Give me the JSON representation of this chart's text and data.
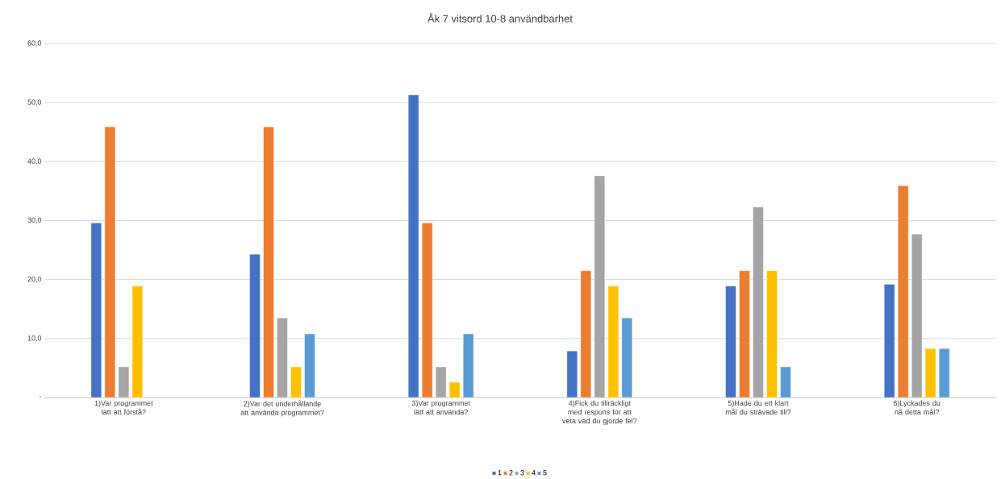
{
  "chart_data": {
    "type": "bar",
    "title": "Åk 7 vitsord 10-8 användbarhet",
    "categories": [
      "1)Var programmet lätt att förstå?",
      "2)Var det underhållande att använda programmet?",
      "3)Var programmet lätt att använda?",
      "4)Fick du tillräckligt med respons för att veta vad du gjorde fel?",
      "5)Hade du ett klart mål du strävade till?",
      "6)Lyckades du nå detta mål?"
    ],
    "series": [
      {
        "name": "1",
        "color": "#4472c4",
        "values": [
          29.6,
          24.3,
          51.3,
          7.9,
          18.9,
          19.2
        ]
      },
      {
        "name": "2",
        "color": "#ed7d31",
        "values": [
          45.9,
          45.9,
          29.6,
          21.5,
          21.5,
          35.9
        ]
      },
      {
        "name": "3",
        "color": "#a5a5a5",
        "values": [
          5.2,
          13.5,
          5.2,
          37.6,
          32.3,
          27.7
        ]
      },
      {
        "name": "4",
        "color": "#ffc000",
        "values": [
          18.9,
          5.2,
          2.6,
          18.9,
          21.5,
          8.3
        ]
      },
      {
        "name": "5",
        "color": "#5b9bd5",
        "values": [
          null,
          10.8,
          10.8,
          13.5,
          5.2,
          8.3
        ]
      }
    ],
    "ylim": [
      0,
      60
    ],
    "yticks": [
      {
        "value": 0,
        "label": "-"
      },
      {
        "value": 10,
        "label": "10,0"
      },
      {
        "value": 20,
        "label": "20,0"
      },
      {
        "value": 30,
        "label": "30,0"
      },
      {
        "value": 40,
        "label": "40,0"
      },
      {
        "value": 50,
        "label": "50,0"
      },
      {
        "value": 60,
        "label": "60,0"
      }
    ],
    "grid": "y",
    "legend": "bottom"
  }
}
